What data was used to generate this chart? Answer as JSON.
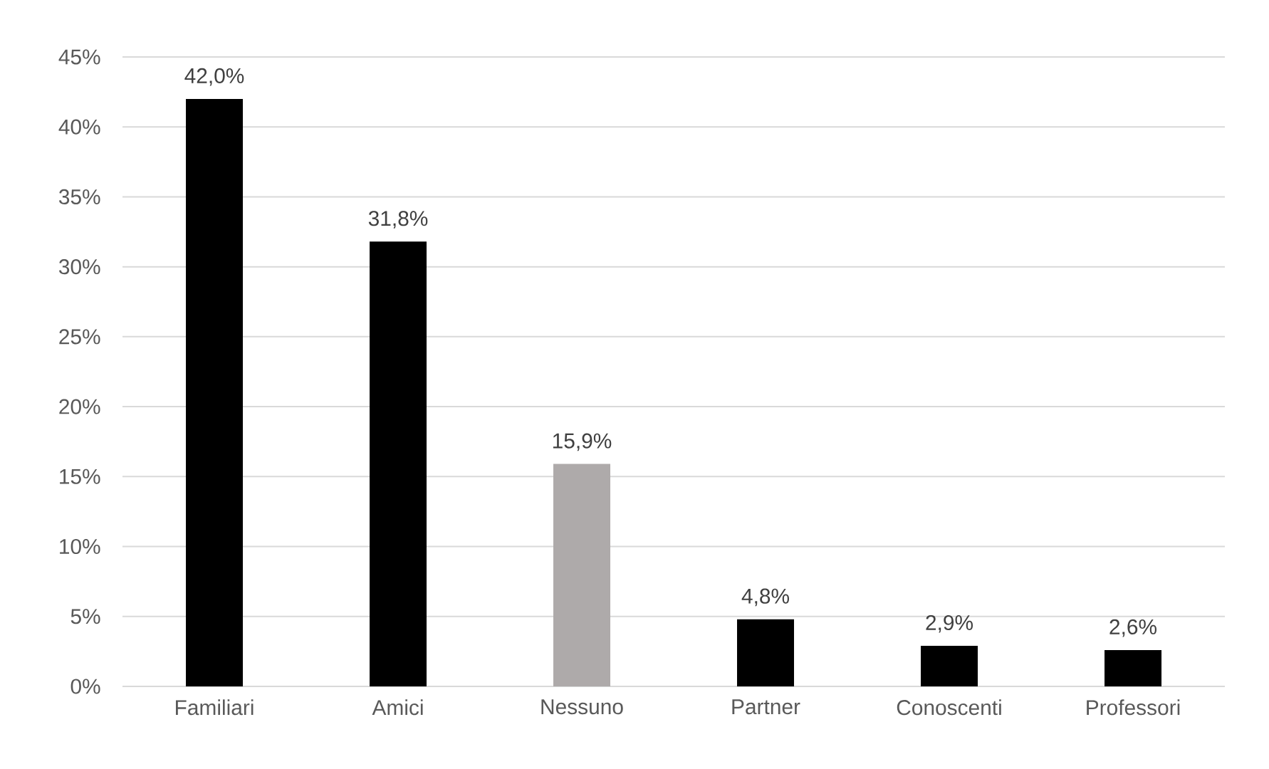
{
  "chart_data": {
    "type": "bar",
    "categories": [
      "Familiari",
      "Amici",
      "Nessuno",
      "Partner",
      "Conoscenti",
      "Professori"
    ],
    "values": [
      42.0,
      31.8,
      15.9,
      4.8,
      2.9,
      2.6
    ],
    "value_labels": [
      "42,0%",
      "31,8%",
      "15,9%",
      "4,8%",
      "2,9%",
      "2,6%"
    ],
    "colors": [
      "#000000",
      "#000000",
      "#aeaaaa",
      "#000000",
      "#000000",
      "#000000"
    ],
    "ylim": [
      0,
      45
    ],
    "yticks": [
      {
        "value": 0,
        "label": "0%"
      },
      {
        "value": 5,
        "label": "5%"
      },
      {
        "value": 10,
        "label": "10%"
      },
      {
        "value": 15,
        "label": "15%"
      },
      {
        "value": 20,
        "label": "20%"
      },
      {
        "value": 25,
        "label": "25%"
      },
      {
        "value": 30,
        "label": "30%"
      },
      {
        "value": 35,
        "label": "35%"
      },
      {
        "value": 40,
        "label": "40%"
      },
      {
        "value": 45,
        "label": "45%"
      }
    ],
    "grid": "y"
  }
}
